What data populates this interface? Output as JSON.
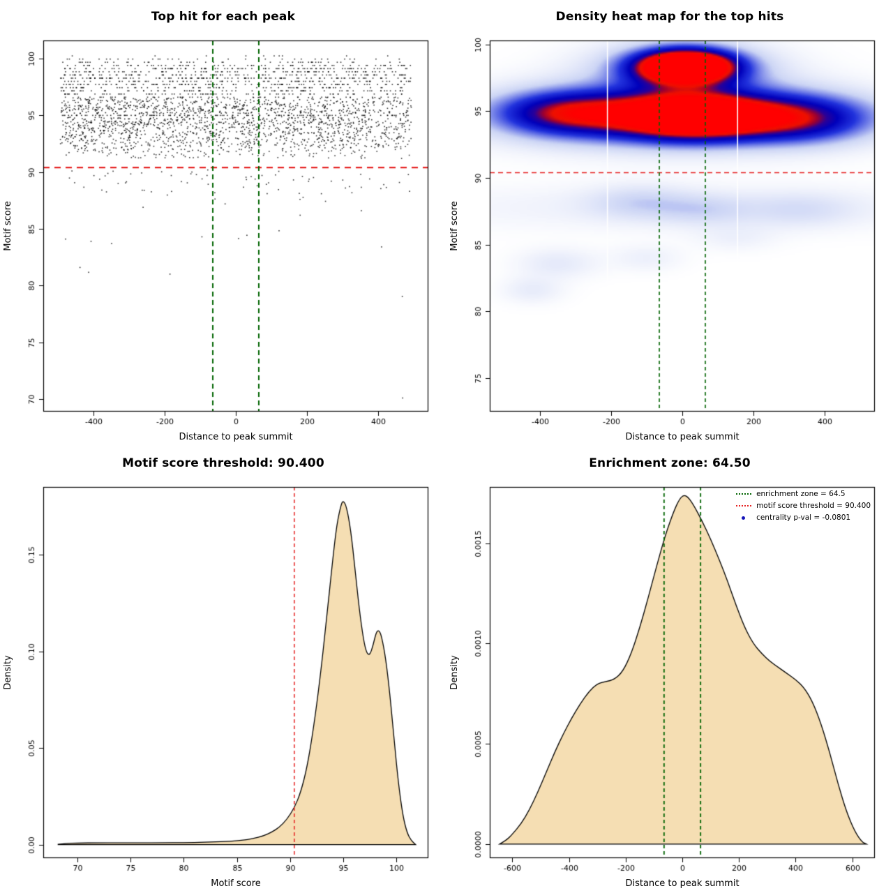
{
  "page": {
    "background": "#ffffff"
  },
  "chart_data": [
    {
      "type": "scatter",
      "title": "Top hit for each peak",
      "xlabel": "Distance to peak summit",
      "ylabel": "Motif score",
      "xlim": [
        -540,
        540
      ],
      "ylim": [
        68.9,
        101.6
      ],
      "xticks": [
        -400,
        -200,
        0,
        200,
        400
      ],
      "yticks": [
        70,
        75,
        80,
        85,
        90,
        95,
        100
      ],
      "hline": {
        "y": 90.4,
        "color": "#e62222",
        "width": 2.2,
        "dash": [
          9,
          7
        ]
      },
      "vlines": {
        "xs": [
          -64.5,
          64.5
        ],
        "color": "#006400",
        "width": 2,
        "dash": [
          7,
          5
        ]
      },
      "points": {
        "seed": 1337,
        "x_range": [
          -492,
          492
        ],
        "color": "#000000",
        "size": 1.6,
        "quantize_above": 96.6,
        "quantize_step": 0.28,
        "snap_rows": [
          {
            "y": 95.0,
            "tol": 0.12
          }
        ],
        "clusters": [
          {
            "n": 2300,
            "mean": 94.6,
            "sd": 1.9,
            "min": 91.2,
            "max": 100.15
          },
          {
            "n": 650,
            "mean": 98.8,
            "sd": 0.9,
            "min": 96.7,
            "max": 100.2
          },
          {
            "n": 60,
            "mean": 89.4,
            "sd": 0.85,
            "min": 86.8,
            "max": 90.3
          },
          {
            "n": 14,
            "mean": 85.0,
            "sd": 3.2,
            "min": 70.5,
            "max": 90.2
          }
        ],
        "outliers": [
          [
            468,
            70.1
          ],
          [
            -437,
            81.6
          ],
          [
            -406,
            83.9
          ],
          [
            352,
            86.6
          ],
          [
            415,
            88.9
          ],
          [
            -95,
            84.3
          ],
          [
            -260,
            86.9
          ],
          [
            180,
            87.6
          ],
          [
            -180,
            88.3
          ],
          [
            60,
            88.8
          ],
          [
            300,
            89.3
          ],
          [
            -330,
            89.0
          ],
          [
            240,
            88.1
          ],
          [
            -30,
            87.2
          ]
        ]
      }
    },
    {
      "type": "heatmap",
      "title": "Density heat map for the top hits",
      "xlabel": "Distance to peak summit",
      "ylabel": "Motif score",
      "xlim": [
        -540,
        540
      ],
      "ylim": [
        72.5,
        100.3
      ],
      "xticks": [
        -400,
        -200,
        0,
        200,
        400
      ],
      "yticks": [
        75,
        80,
        85,
        90,
        95,
        100
      ],
      "hline": {
        "y": 90.4,
        "color": "#e62222",
        "width": 1.5,
        "dash": [
          7,
          5
        ]
      },
      "vlines": {
        "xs": [
          -64.5,
          64.5
        ],
        "color": "#006400",
        "width": 1.6,
        "dash": [
          5,
          4
        ]
      },
      "white_vlines": [
        -210,
        155
      ],
      "colormap": [
        {
          "t": 0.0,
          "c": "#ffffff"
        },
        {
          "t": 0.2,
          "c": "#ccd5f5"
        },
        {
          "t": 0.45,
          "c": "#2233dd"
        },
        {
          "t": 0.62,
          "c": "#0000bb"
        },
        {
          "t": 0.72,
          "c": "#2a0099"
        },
        {
          "t": 0.8,
          "c": "#990033"
        },
        {
          "t": 0.88,
          "c": "#ee1100"
        },
        {
          "t": 1.0,
          "c": "#ff0000"
        }
      ],
      "blobs": [
        {
          "x": -20,
          "y": 94.7,
          "sx": 300,
          "sy": 1.5,
          "a": 0.75
        },
        {
          "x": 30,
          "y": 94.6,
          "sx": 130,
          "sy": 1.1,
          "a": 0.9
        },
        {
          "x": -330,
          "y": 94.9,
          "sx": 130,
          "sy": 1.1,
          "a": 0.5
        },
        {
          "x": 330,
          "y": 94.4,
          "sx": 140,
          "sy": 1.2,
          "a": 0.5
        },
        {
          "x": 10,
          "y": 98.35,
          "sx": 95,
          "sy": 0.85,
          "a": 1.4
        },
        {
          "x": 0,
          "y": 98.2,
          "sx": 170,
          "sy": 1.4,
          "a": 0.35
        },
        {
          "x": 0,
          "y": 87.8,
          "sx": 600,
          "sy": 1.2,
          "a": 0.07
        },
        {
          "x": -120,
          "y": 88.2,
          "sx": 100,
          "sy": 0.9,
          "a": 0.14
        },
        {
          "x": 60,
          "y": 87.6,
          "sx": 90,
          "sy": 0.8,
          "a": 0.12
        },
        {
          "x": 330,
          "y": 87.6,
          "sx": 110,
          "sy": 0.9,
          "a": 0.11
        },
        {
          "x": -350,
          "y": 83.6,
          "sx": 80,
          "sy": 0.8,
          "a": 0.1
        },
        {
          "x": -420,
          "y": 81.6,
          "sx": 60,
          "sy": 0.7,
          "a": 0.09
        },
        {
          "x": -100,
          "y": 84.0,
          "sx": 70,
          "sy": 0.7,
          "a": 0.07
        },
        {
          "x": 150,
          "y": 85.5,
          "sx": 80,
          "sy": 0.7,
          "a": 0.06
        }
      ]
    },
    {
      "type": "density",
      "title": "Motif score threshold: 90.400",
      "xlabel": "Motif score",
      "ylabel": "Density",
      "xlim": [
        66.8,
        103
      ],
      "ylim": [
        -0.007,
        0.185
      ],
      "xticks": [
        70,
        75,
        80,
        85,
        90,
        95,
        100
      ],
      "yticks": [
        0,
        0.05,
        0.1,
        0.15
      ],
      "ytick_labels": [
        "0.00",
        "0.05",
        "0.10",
        "0.15"
      ],
      "fill": "#f5deb3",
      "stroke": "#000000",
      "vlines": {
        "xs": [
          90.4
        ],
        "color": "#e62222",
        "width": 1.5,
        "dash": [
          5,
          4
        ]
      },
      "curve": [
        [
          68.2,
          0.0002
        ],
        [
          69,
          0.0006
        ],
        [
          70,
          0.0008
        ],
        [
          72,
          0.0009
        ],
        [
          74,
          0.0009
        ],
        [
          76,
          0.0009
        ],
        [
          78,
          0.0009
        ],
        [
          80,
          0.001
        ],
        [
          82,
          0.0012
        ],
        [
          84,
          0.0016
        ],
        [
          85.5,
          0.0022
        ],
        [
          86.5,
          0.003
        ],
        [
          87.5,
          0.0045
        ],
        [
          88.3,
          0.0065
        ],
        [
          89,
          0.009
        ],
        [
          89.7,
          0.013
        ],
        [
          90.4,
          0.019
        ],
        [
          91,
          0.027
        ],
        [
          91.6,
          0.04
        ],
        [
          92.2,
          0.06
        ],
        [
          92.8,
          0.085
        ],
        [
          93.4,
          0.115
        ],
        [
          94,
          0.147
        ],
        [
          94.4,
          0.166
        ],
        [
          94.8,
          0.176
        ],
        [
          95,
          0.178
        ],
        [
          95.3,
          0.175
        ],
        [
          95.7,
          0.163
        ],
        [
          96.1,
          0.143
        ],
        [
          96.5,
          0.122
        ],
        [
          96.9,
          0.106
        ],
        [
          97.2,
          0.099
        ],
        [
          97.5,
          0.098
        ],
        [
          97.8,
          0.103
        ],
        [
          98.1,
          0.11
        ],
        [
          98.35,
          0.111
        ],
        [
          98.6,
          0.108
        ],
        [
          99,
          0.096
        ],
        [
          99.4,
          0.077
        ],
        [
          99.8,
          0.053
        ],
        [
          100.2,
          0.031
        ],
        [
          100.6,
          0.015
        ],
        [
          101,
          0.006
        ],
        [
          101.4,
          0.002
        ],
        [
          101.8,
          0
        ]
      ]
    },
    {
      "type": "density",
      "title": "Enrichment zone: 64.50",
      "xlabel": "Distance to peak summit",
      "ylabel": "Density",
      "xlim": [
        -680,
        680
      ],
      "ylim": [
        -7e-05,
        0.00178
      ],
      "xticks": [
        -600,
        -400,
        -200,
        0,
        200,
        400,
        600
      ],
      "yticks": [
        0,
        0.0005,
        0.001,
        0.0015
      ],
      "ytick_labels": [
        "0.0000",
        "0.0005",
        "0.0010",
        "0.0015"
      ],
      "fill": "#f5deb3",
      "stroke": "#000000",
      "vlines": {
        "xs": [
          -64.5,
          64.5
        ],
        "color": "#006400",
        "width": 1.8,
        "dash": [
          5,
          4
        ]
      },
      "curve": [
        [
          -645,
          0
        ],
        [
          -620,
          2e-05
        ],
        [
          -600,
          5e-05
        ],
        [
          -570,
          0.0001
        ],
        [
          -540,
          0.00017
        ],
        [
          -510,
          0.00026
        ],
        [
          -480,
          0.00036
        ],
        [
          -450,
          0.00046
        ],
        [
          -420,
          0.00055
        ],
        [
          -390,
          0.00063
        ],
        [
          -360,
          0.0007
        ],
        [
          -330,
          0.00076
        ],
        [
          -300,
          0.0008
        ],
        [
          -270,
          0.00081
        ],
        [
          -240,
          0.00082
        ],
        [
          -210,
          0.00086
        ],
        [
          -180,
          0.00095
        ],
        [
          -150,
          0.00108
        ],
        [
          -120,
          0.00123
        ],
        [
          -90,
          0.00139
        ],
        [
          -60,
          0.00154
        ],
        [
          -30,
          0.00166
        ],
        [
          -10,
          0.00172
        ],
        [
          5,
          0.00174
        ],
        [
          20,
          0.00173
        ],
        [
          40,
          0.00169
        ],
        [
          70,
          0.00161
        ],
        [
          100,
          0.00152
        ],
        [
          130,
          0.00142
        ],
        [
          160,
          0.00131
        ],
        [
          190,
          0.00119
        ],
        [
          220,
          0.00108
        ],
        [
          250,
          0.001
        ],
        [
          280,
          0.00095
        ],
        [
          310,
          0.00091
        ],
        [
          340,
          0.00088
        ],
        [
          370,
          0.00085
        ],
        [
          400,
          0.00082
        ],
        [
          430,
          0.00078
        ],
        [
          460,
          0.00071
        ],
        [
          490,
          0.0006
        ],
        [
          520,
          0.00046
        ],
        [
          550,
          0.0003
        ],
        [
          580,
          0.00016
        ],
        [
          610,
          6e-05
        ],
        [
          635,
          1e-05
        ],
        [
          650,
          0
        ]
      ],
      "legend": {
        "items": [
          {
            "label": "enrichment zone = 64.5",
            "color": "#006400",
            "marker": "dotted-line"
          },
          {
            "label": "motif score threshold = 90.400",
            "color": "#e62222",
            "marker": "dotted-line"
          },
          {
            "label": "centrality p-val = -0.0801",
            "color": "#1414b8",
            "marker": "point"
          }
        ]
      }
    }
  ]
}
